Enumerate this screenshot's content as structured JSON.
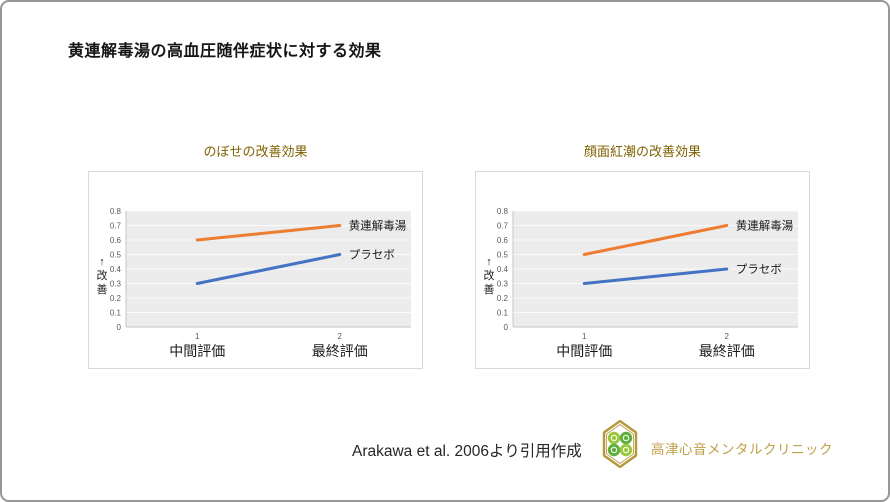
{
  "page": {
    "title": "黄連解毒湯の高血圧随伴症状に対する効果"
  },
  "chart_data": [
    {
      "type": "line",
      "title": "のぼせの改善効果",
      "categories": [
        "中間評価",
        "最終評価"
      ],
      "category_ticks": [
        "1",
        "2"
      ],
      "series": [
        {
          "name": "黄連解毒湯",
          "values": [
            0.6,
            0.7
          ],
          "color": "#ED7D31"
        },
        {
          "name": "プラセボ",
          "values": [
            0.3,
            0.5
          ],
          "color": "#4472C4"
        }
      ],
      "ylabel": "↑改善",
      "xlabel": "",
      "ylim": [
        0,
        0.8
      ],
      "ytick_step": 0.1,
      "grid": true,
      "legend_position": "labels-at-line-end",
      "plot_background": "#ECECEC"
    },
    {
      "type": "line",
      "title": "顔面紅潮の改善効果",
      "categories": [
        "中間評価",
        "最終評価"
      ],
      "category_ticks": [
        "1",
        "2"
      ],
      "series": [
        {
          "name": "黄連解毒湯",
          "values": [
            0.5,
            0.7
          ],
          "color": "#ED7D31"
        },
        {
          "name": "プラセボ",
          "values": [
            0.3,
            0.4
          ],
          "color": "#4472C4"
        }
      ],
      "ylabel": "↑改善",
      "xlabel": "",
      "ylim": [
        0,
        0.8
      ],
      "ytick_step": 0.1,
      "grid": true,
      "legend_position": "labels-at-line-end",
      "plot_background": "#ECECEC"
    }
  ],
  "footer": {
    "citation": "Arakawa et al. 2006より引用作成",
    "clinic_name": "高津心音メンタルクリニック",
    "logo_icon": "hexagon-clover-logo"
  },
  "colors": {
    "chart_title_gold": "#7F6000",
    "clinic_gold": "#BFA04A",
    "series_orange": "#ED7D31",
    "series_blue": "#4472C4",
    "plot_background": "#ECECEC",
    "axis_text": "#595959",
    "logo_hex_gold": "#B5983C",
    "logo_leaf_light": "#9BC83F",
    "logo_leaf_dark": "#5FAE3E"
  }
}
